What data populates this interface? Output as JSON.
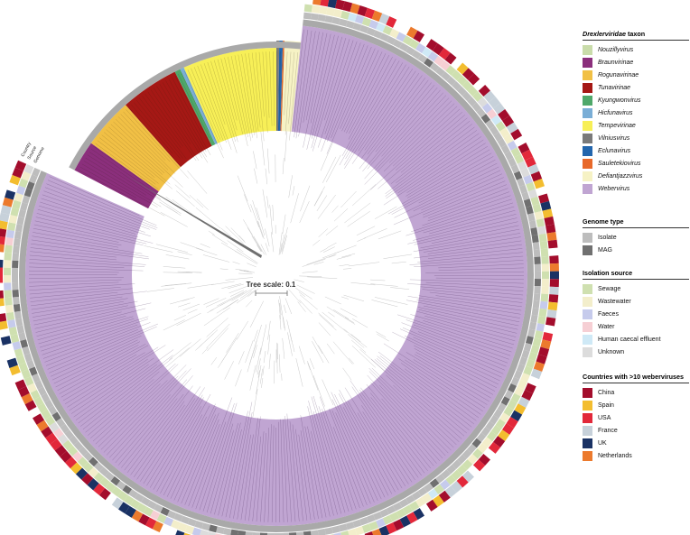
{
  "tree": {
    "scale_label": "Tree scale: 0.1",
    "ring_labels": [
      "Country",
      "Source",
      "Genome"
    ]
  },
  "legend": {
    "taxon": {
      "title_genus": "Drexlerviridae",
      "title_rest": " taxon",
      "items": [
        {
          "label": "Nouzillyvirus",
          "color": "#c9dcaa"
        },
        {
          "label": "Braunvirinae",
          "color": "#8b2f7c"
        },
        {
          "label": "Rogunavirinae",
          "color": "#f1c045"
        },
        {
          "label": "Tunavirinae",
          "color": "#a51815"
        },
        {
          "label": "Kyungwonvirus",
          "color": "#4fa86a"
        },
        {
          "label": "Hicfunavirus",
          "color": "#7aaed6"
        },
        {
          "label": "Tempevirinae",
          "color": "#f7ef57"
        },
        {
          "label": "Vilniusvirus",
          "color": "#7a7a7a"
        },
        {
          "label": "Eclunavirus",
          "color": "#2366ad"
        },
        {
          "label": "Sauletekiovirus",
          "color": "#e8692a"
        },
        {
          "label": "Defiantjazzvirus",
          "color": "#f6f2c5"
        },
        {
          "label": "Webervirus",
          "color": "#c0a5d2"
        }
      ]
    },
    "genome_type": {
      "title": "Genome type",
      "items": [
        {
          "label": "Isolate",
          "color": "#bdbdbd"
        },
        {
          "label": "MAG",
          "color": "#707070"
        }
      ]
    },
    "isolation_source": {
      "title": "Isolation source",
      "items": [
        {
          "label": "Sewage",
          "color": "#cfe0b0"
        },
        {
          "label": "Wastewater",
          "color": "#f3eecb"
        },
        {
          "label": "Faeces",
          "color": "#c6cbec"
        },
        {
          "label": "Water",
          "color": "#f6cfd4"
        },
        {
          "label": "Human caecal effluent",
          "color": "#cfe9f6"
        },
        {
          "label": "Unknown",
          "color": "#dcdcdc"
        }
      ]
    },
    "countries": {
      "title": "Countries with >10 weberviruses",
      "items": [
        {
          "label": "China",
          "color": "#a30d2c"
        },
        {
          "label": "Spain",
          "color": "#f3bd2f"
        },
        {
          "label": "USA",
          "color": "#e2283a"
        },
        {
          "label": "France",
          "color": "#c7d1da"
        },
        {
          "label": "UK",
          "color": "#1a3264"
        },
        {
          "label": "Netherlands",
          "color": "#ec7a2d"
        }
      ]
    }
  }
}
